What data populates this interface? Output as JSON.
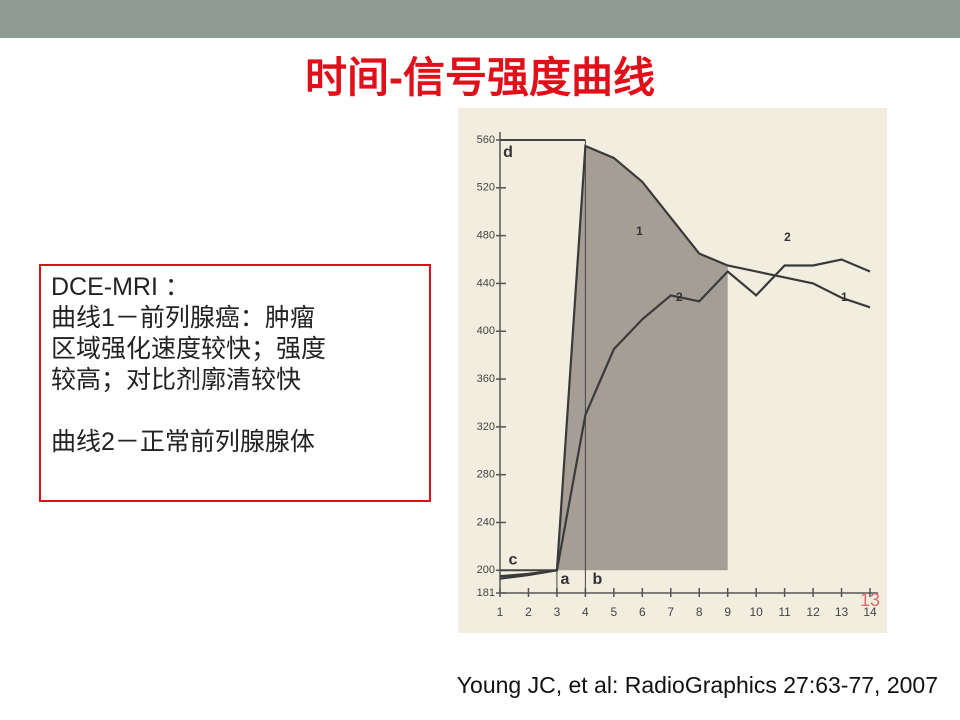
{
  "slide_title": "时间-信号强度曲线",
  "textbox": {
    "lines": [
      "DCE-MRI ：",
      "曲线1－前列腺癌：肿瘤",
      "区域强化速度较快；强度",
      "较高；对比剂廓清较快",
      "曲线2－正常前列腺腺体"
    ]
  },
  "citation": "Young JC, et al: RadioGraphics 27:63-77, 2007",
  "chart_data": {
    "type": "line",
    "x": [
      1,
      2,
      3,
      4,
      5,
      6,
      7,
      8,
      9,
      10,
      11,
      12,
      13,
      14
    ],
    "series": [
      {
        "name": "1",
        "color": "#3a3a3a",
        "values": [
          193,
          196,
          200,
          555,
          545,
          525,
          495,
          465,
          455,
          450,
          445,
          440,
          428,
          420
        ]
      },
      {
        "name": "2",
        "color": "#3a3a3a",
        "values": [
          195,
          197,
          200,
          330,
          385,
          410,
          430,
          425,
          450,
          430,
          455,
          455,
          460,
          450
        ]
      }
    ],
    "xlim": [
      1,
      14
    ],
    "xticks": [
      1,
      2,
      3,
      4,
      5,
      6,
      7,
      8,
      9,
      10,
      11,
      12,
      13,
      14
    ],
    "ylim": [
      181,
      560
    ],
    "yticks": [
      181,
      200,
      240,
      280,
      320,
      360,
      400,
      440,
      480,
      520,
      560
    ],
    "annotations": [
      "d",
      "c",
      "a",
      "b"
    ],
    "page_number": "13"
  }
}
